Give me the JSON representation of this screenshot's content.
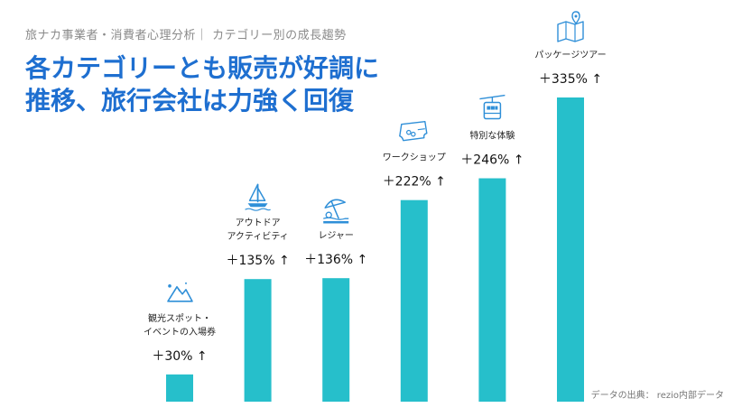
{
  "header": {
    "subtitle": "旅ナカ事業者・消費者心理分析｜ カテゴリー別の成長趨勢",
    "headline_line1": "各カテゴリーとも販売が好調に",
    "headline_line2": "推移、旅行会社は力強く回復"
  },
  "source": "データの出典： rezio内部データ",
  "colors": {
    "bar": "#26bfcb",
    "headline": "#1e6fd0",
    "icon": "#2f8fd8"
  },
  "chart_data": {
    "type": "bar",
    "title": "各カテゴリーとも販売が好調に推移、旅行会社は力強く回復",
    "categories": [
      [
        "観光スポット・",
        "イベントの入場券"
      ],
      [
        "アウトドア",
        "アクティビティ"
      ],
      [
        "レジャー"
      ],
      [
        "ワークショップ"
      ],
      [
        "特別な体験"
      ],
      [
        "パッケージツアー"
      ]
    ],
    "values": [
      30,
      135,
      136,
      222,
      246,
      335
    ],
    "labels": [
      "＋30% ↑",
      "＋135% ↑",
      "＋136% ↑",
      "＋222% ↑",
      "＋246% ↑",
      "＋335% ↑"
    ],
    "icons": [
      "mountain-icon",
      "sailboat-icon",
      "beach-umbrella-icon",
      "ticket-icon",
      "ropeway-icon",
      "map-icon"
    ],
    "ylim": [
      0,
      335
    ],
    "unit": "%",
    "xlabel": "",
    "ylabel": ""
  }
}
